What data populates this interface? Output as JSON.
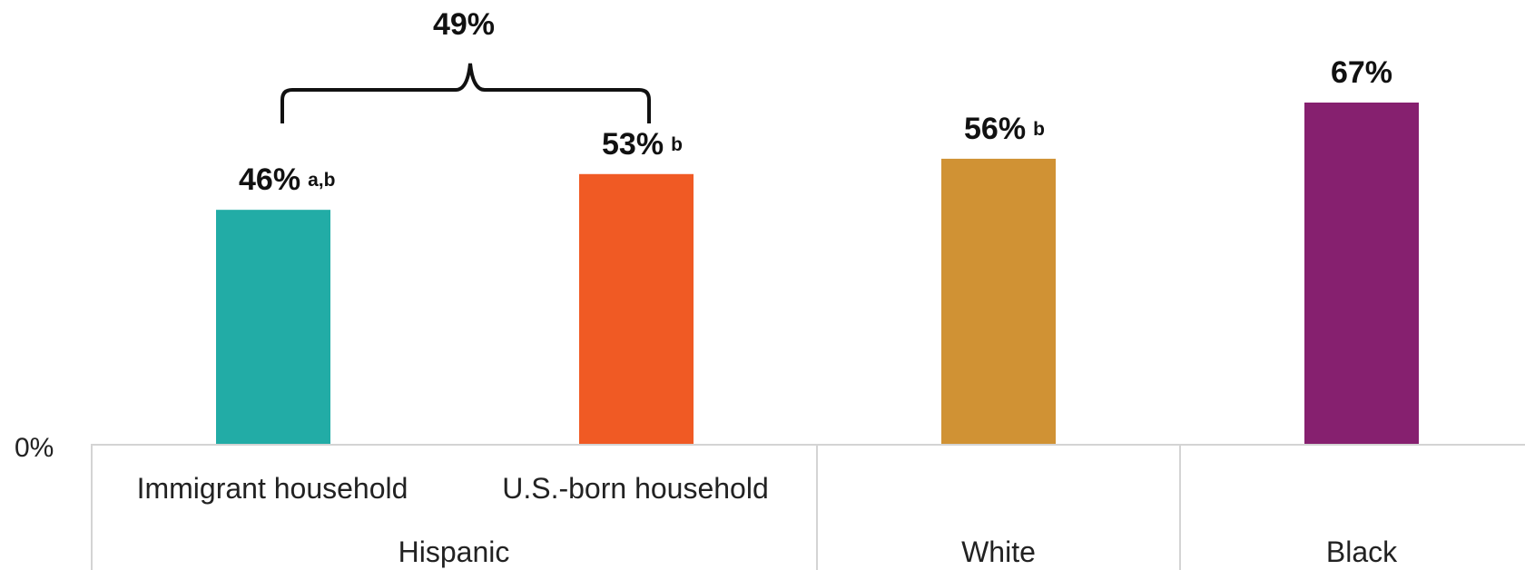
{
  "chart_data": {
    "type": "bar",
    "categories": [
      "Immigrant household",
      "U.S.-born household",
      "White",
      "Black"
    ],
    "groups": [
      {
        "label": "Hispanic",
        "members": [
          "Immigrant household",
          "U.S.-born household"
        ]
      },
      {
        "label": "White",
        "members": [
          "White"
        ]
      },
      {
        "label": "Black",
        "members": [
          "Black"
        ]
      }
    ],
    "values": [
      46,
      53,
      56,
      67
    ],
    "value_labels": [
      "46%",
      "53%",
      "56%",
      "67%"
    ],
    "superscripts": [
      "a,b",
      "b",
      "b",
      ""
    ],
    "colors": [
      "#22aca6",
      "#f05a24",
      "#d09234",
      "#86206f"
    ],
    "bracket_label": "49%",
    "bracket_spans": [
      "Immigrant household",
      "U.S.-born household"
    ],
    "y_tick_label": "0%",
    "ylim": [
      0,
      100
    ],
    "grid": false,
    "legend": "none"
  }
}
